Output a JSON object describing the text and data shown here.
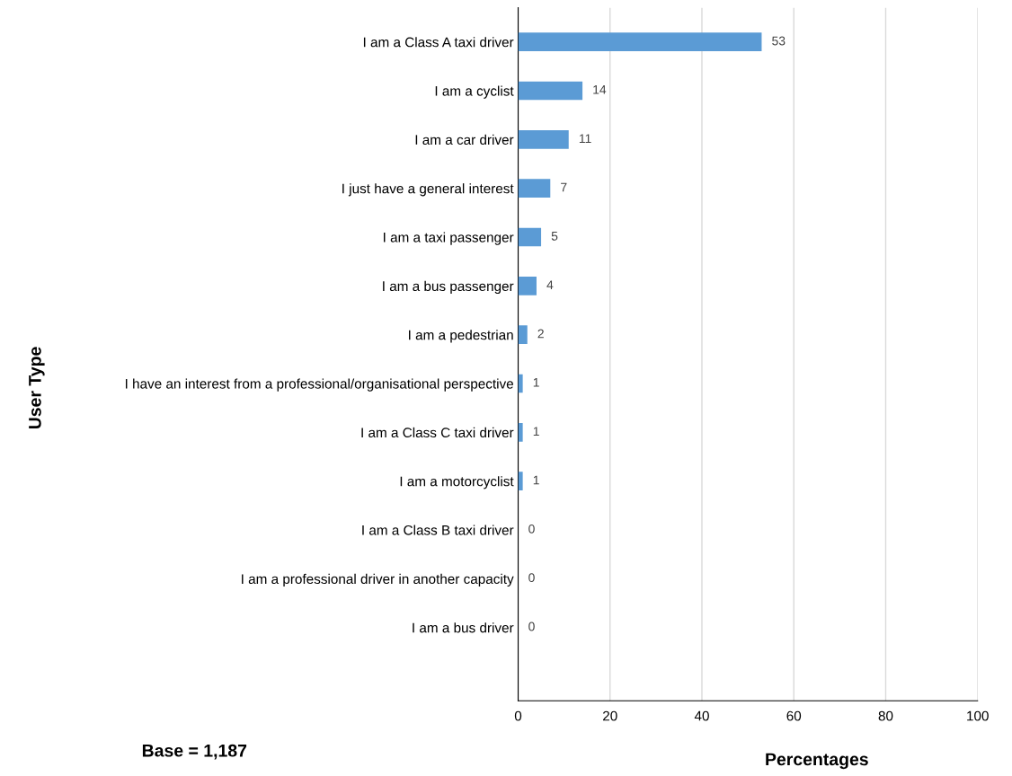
{
  "chart_data": {
    "type": "bar",
    "orientation": "horizontal",
    "categories": [
      "I am a Class A taxi driver",
      "I am a cyclist",
      "I am a car driver",
      "I just have a general interest",
      "I am a taxi passenger",
      "I am a bus passenger",
      "I am a pedestrian",
      "I have an interest from a professional/organisational perspective",
      "I am a Class C taxi driver",
      "I am a motorcyclist",
      "I am a Class B taxi driver",
      "I am a professional driver in another capacity",
      "I am a bus driver",
      null
    ],
    "values": [
      53,
      14,
      11,
      7,
      5,
      4,
      2,
      1,
      1,
      1,
      0,
      0,
      0,
      null
    ],
    "color": "#5b9bd5",
    "data_labels": true,
    "xlim": [
      0,
      100
    ],
    "xticks": [
      0,
      20,
      40,
      60,
      80,
      100
    ],
    "grid": "x",
    "legend": false,
    "xlabel": "Percentages",
    "ylabel": "User Type",
    "annotations": [
      "Base = 1,187"
    ]
  }
}
